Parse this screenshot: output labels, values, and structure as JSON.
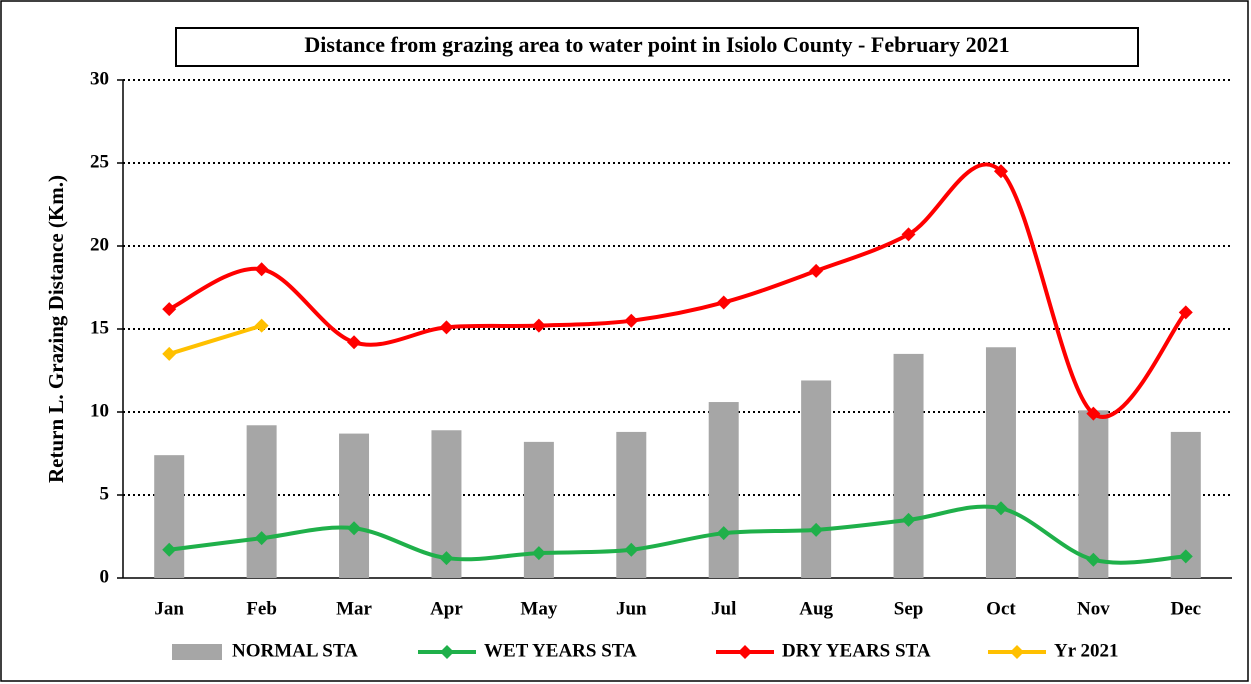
{
  "chart_data": {
    "type": "bar",
    "title": "Distance from grazing area to water point in Isiolo County - February 2021",
    "y_label": "Return L. Grazing Distance (Km.)",
    "categories": [
      "Jan",
      "Feb",
      "Mar",
      "Apr",
      "May",
      "Jun",
      "Jul",
      "Aug",
      "Sep",
      "Oct",
      "Nov",
      "Dec"
    ],
    "series": [
      {
        "name": "NORMAL STA",
        "type": "bar",
        "color": "#a6a6a6",
        "values": [
          7.4,
          9.2,
          8.7,
          8.9,
          8.2,
          8.8,
          10.6,
          11.9,
          13.5,
          13.9,
          10.1,
          8.8
        ]
      },
      {
        "name": "WET YEARS STA",
        "type": "line",
        "color": "#1fb04a",
        "values": [
          1.7,
          2.4,
          3.0,
          1.2,
          1.5,
          1.7,
          2.7,
          2.9,
          3.5,
          4.2,
          1.1,
          1.3
        ]
      },
      {
        "name": "DRY YEARS STA",
        "type": "line",
        "color": "#ff0000",
        "values": [
          16.2,
          18.6,
          14.2,
          15.1,
          15.2,
          15.5,
          16.6,
          18.5,
          20.7,
          24.5,
          9.9,
          16.0
        ]
      },
      {
        "name": "Yr 2021",
        "type": "line",
        "color": "#ffc000",
        "values": [
          13.5,
          15.2,
          null,
          null,
          null,
          null,
          null,
          null,
          null,
          null,
          null,
          null
        ]
      }
    ],
    "ylim": [
      0,
      30
    ],
    "yticks": [
      0,
      5,
      10,
      15,
      20,
      25,
      30
    ],
    "grid": true,
    "legend": "bottom"
  }
}
